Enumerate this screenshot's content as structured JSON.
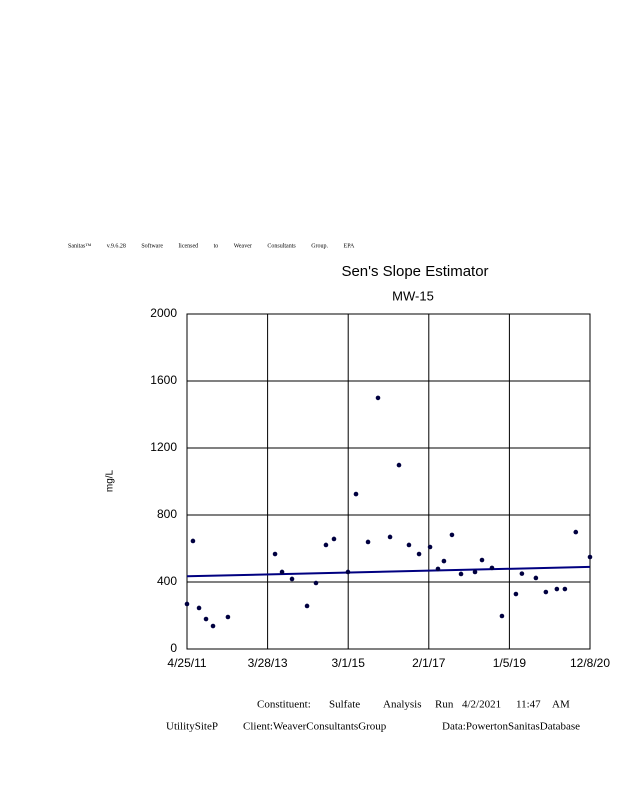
{
  "header": {
    "software_line": "Sanitas™ v.9.6.28 Software licensed to Weaver Consultants Group. EPA"
  },
  "chart_data": {
    "type": "scatter",
    "title": "Sen's Slope Estimator",
    "subtitle": "MW-15",
    "y_label": "mg/L",
    "xlim": [
      "4/25/11",
      "12/8/20"
    ],
    "xticks": [
      "4/25/11",
      "3/28/13",
      "3/1/15",
      "2/1/17",
      "1/5/19",
      "12/8/20"
    ],
    "ylim": [
      0,
      2000
    ],
    "yticks": [
      0,
      400,
      800,
      1200,
      1600,
      2000
    ],
    "grid": true,
    "series": [
      {
        "color": "#000040",
        "x": [
          "4/25/11",
          "6/16/11",
          "8/8/11",
          "10/8/11",
          "12/8/11",
          "4/16/12",
          "6/1/13",
          "8/1/13",
          "10/27/13",
          "3/7/14",
          "5/24/14",
          "8/19/14",
          "10/28/14",
          "2/27/15",
          "5/8/15",
          "8/21/15",
          "11/16/15",
          "2/29/16",
          "5/17/16",
          "8/12/16",
          "11/8/16",
          "2/12/17",
          "4/22/17",
          "6/13/17",
          "8/22/17",
          "11/9/17",
          "3/11/18",
          "5/11/18",
          "8/6/18",
          "11/1/18",
          "3/3/19",
          "4/24/19",
          "8/24/19",
          "11/19/19",
          "2/23/20",
          "5/3/20",
          "8/6/20",
          "12/8/20"
        ],
        "values": [
          269,
          645,
          245,
          179,
          137,
          191,
          567,
          460,
          418,
          257,
          394,
          621,
          657,
          460,
          925,
          639,
          1499,
          669,
          1098,
          621,
          567,
          609,
          478,
          525,
          681,
          448,
          460,
          531,
          484,
          197,
          328,
          450,
          424,
          340,
          358,
          358,
          698,
          549
        ]
      }
    ],
    "trend": {
      "color": "#000080",
      "x": [
        "4/25/11",
        "12/8/20"
      ],
      "values": [
        434,
        490
      ]
    }
  },
  "footer": {
    "line1": [
      "Constituent:",
      "Sulfate",
      "Analysis",
      "Run",
      "4/2/2021",
      "11:47",
      "AM"
    ],
    "line2": [
      "UtilitySiteP",
      "Client:WeaverConsultantsGroup",
      "Data:PowertonSanitasDatabase"
    ]
  }
}
